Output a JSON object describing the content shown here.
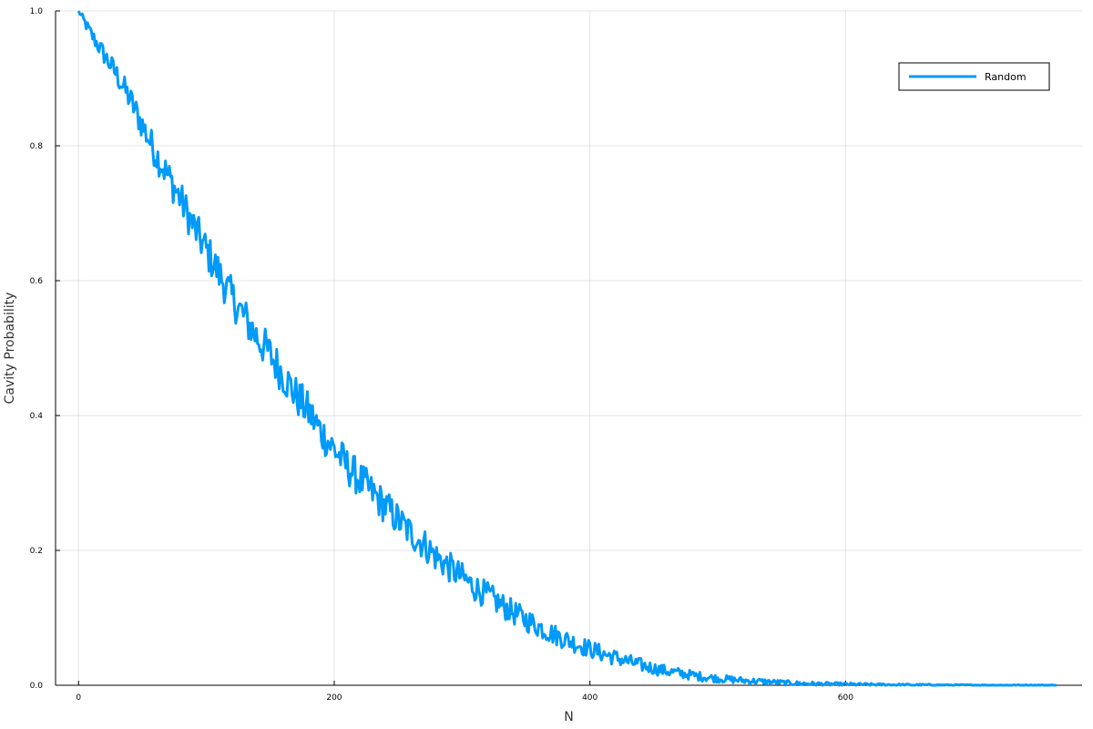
{
  "chart_data": {
    "type": "line",
    "xlabel": "N",
    "ylabel": "Cavity Probability",
    "xlim": [
      -18,
      785
    ],
    "ylim": [
      0,
      1
    ],
    "x_ticks": [
      0,
      200,
      400,
      600
    ],
    "x_tick_labels": [
      "0",
      "200",
      "400",
      "600"
    ],
    "y_ticks": [
      0,
      0.2,
      0.4,
      0.6,
      0.8,
      1.0
    ],
    "y_tick_labels": [
      "0.0",
      "0.2",
      "0.4",
      "0.6",
      "0.8",
      "1.0"
    ],
    "grid": true,
    "legend_position": "top-right",
    "series": [
      {
        "name": "Random",
        "color": "#009AF9",
        "points": [
          [
            0,
            1.0
          ],
          [
            10,
            0.965
          ],
          [
            20,
            0.935
          ],
          [
            30,
            0.905
          ],
          [
            40,
            0.87
          ],
          [
            50,
            0.83
          ],
          [
            60,
            0.79
          ],
          [
            70,
            0.755
          ],
          [
            80,
            0.72
          ],
          [
            90,
            0.68
          ],
          [
            100,
            0.645
          ],
          [
            110,
            0.61
          ],
          [
            120,
            0.575
          ],
          [
            130,
            0.545
          ],
          [
            140,
            0.515
          ],
          [
            150,
            0.49
          ],
          [
            160,
            0.46
          ],
          [
            170,
            0.43
          ],
          [
            180,
            0.405
          ],
          [
            190,
            0.375
          ],
          [
            200,
            0.35
          ],
          [
            210,
            0.325
          ],
          [
            220,
            0.305
          ],
          [
            230,
            0.285
          ],
          [
            240,
            0.265
          ],
          [
            250,
            0.245
          ],
          [
            260,
            0.225
          ],
          [
            270,
            0.21
          ],
          [
            280,
            0.19
          ],
          [
            290,
            0.175
          ],
          [
            300,
            0.16
          ],
          [
            310,
            0.145
          ],
          [
            320,
            0.133
          ],
          [
            330,
            0.12
          ],
          [
            340,
            0.108
          ],
          [
            350,
            0.097
          ],
          [
            360,
            0.087
          ],
          [
            370,
            0.077
          ],
          [
            380,
            0.069
          ],
          [
            390,
            0.061
          ],
          [
            400,
            0.054
          ],
          [
            410,
            0.047
          ],
          [
            420,
            0.041
          ],
          [
            430,
            0.035
          ],
          [
            440,
            0.03
          ],
          [
            450,
            0.025
          ],
          [
            460,
            0.021
          ],
          [
            470,
            0.018
          ],
          [
            480,
            0.015
          ],
          [
            490,
            0.012
          ],
          [
            500,
            0.01
          ],
          [
            520,
            0.007
          ],
          [
            540,
            0.005
          ],
          [
            560,
            0.003
          ],
          [
            580,
            0.002
          ],
          [
            600,
            0.0015
          ],
          [
            620,
            0.001
          ],
          [
            640,
            0.0007
          ],
          [
            660,
            0.0005
          ],
          [
            680,
            0.0003
          ],
          [
            700,
            0.0002
          ],
          [
            720,
            0.0001
          ],
          [
            740,
            0.0001
          ],
          [
            765,
            0.0
          ]
        ]
      }
    ]
  }
}
